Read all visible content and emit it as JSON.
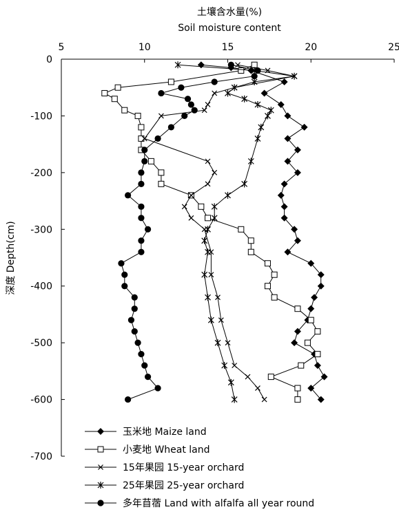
{
  "chart_data": {
    "type": "line",
    "title_cn": "土壤含水量(%)",
    "title_en": "Soil moisture content",
    "ylabel": "深度 Depth(cm)",
    "x_axis_position": "top",
    "xlim": [
      5,
      25
    ],
    "ylim": [
      -700,
      0
    ],
    "xticks": [
      5,
      10,
      15,
      20,
      25
    ],
    "yticks": [
      0,
      -100,
      -200,
      -300,
      -400,
      -500,
      -600,
      -700
    ],
    "legend_position": "bottom-left",
    "series": [
      {
        "name": "玉米地 Maize land",
        "marker": "diamond",
        "color": "#000000",
        "points": [
          {
            "x": 13.4,
            "y": -10
          },
          {
            "x": 15.2,
            "y": -15
          },
          {
            "x": 16.4,
            "y": -20
          },
          {
            "x": 18.4,
            "y": -40
          },
          {
            "x": 17.2,
            "y": -60
          },
          {
            "x": 18.2,
            "y": -80
          },
          {
            "x": 18.6,
            "y": -100
          },
          {
            "x": 19.6,
            "y": -120
          },
          {
            "x": 18.6,
            "y": -140
          },
          {
            "x": 19.2,
            "y": -160
          },
          {
            "x": 18.6,
            "y": -180
          },
          {
            "x": 19.2,
            "y": -200
          },
          {
            "x": 18.4,
            "y": -220
          },
          {
            "x": 18.2,
            "y": -240
          },
          {
            "x": 18.4,
            "y": -260
          },
          {
            "x": 18.4,
            "y": -280
          },
          {
            "x": 19.0,
            "y": -300
          },
          {
            "x": 19.2,
            "y": -320
          },
          {
            "x": 18.6,
            "y": -340
          },
          {
            "x": 20.0,
            "y": -360
          },
          {
            "x": 20.6,
            "y": -380
          },
          {
            "x": 20.6,
            "y": -400
          },
          {
            "x": 20.2,
            "y": -420
          },
          {
            "x": 20.0,
            "y": -440
          },
          {
            "x": 19.8,
            "y": -460
          },
          {
            "x": 19.2,
            "y": -480
          },
          {
            "x": 19.0,
            "y": -500
          },
          {
            "x": 20.2,
            "y": -520
          },
          {
            "x": 20.4,
            "y": -540
          },
          {
            "x": 20.8,
            "y": -560
          },
          {
            "x": 20.0,
            "y": -580
          },
          {
            "x": 20.6,
            "y": -600
          }
        ]
      },
      {
        "name": "小麦地 Wheat land",
        "marker": "open-square",
        "color": "#000000",
        "points": [
          {
            "x": 16.6,
            "y": -10
          },
          {
            "x": 15.8,
            "y": -20
          },
          {
            "x": 11.6,
            "y": -40
          },
          {
            "x": 8.4,
            "y": -50
          },
          {
            "x": 7.6,
            "y": -60
          },
          {
            "x": 8.2,
            "y": -70
          },
          {
            "x": 8.8,
            "y": -90
          },
          {
            "x": 9.6,
            "y": -100
          },
          {
            "x": 9.8,
            "y": -120
          },
          {
            "x": 9.8,
            "y": -140
          },
          {
            "x": 9.8,
            "y": -160
          },
          {
            "x": 10.4,
            "y": -180
          },
          {
            "x": 11.0,
            "y": -200
          },
          {
            "x": 11.0,
            "y": -220
          },
          {
            "x": 12.8,
            "y": -240
          },
          {
            "x": 13.4,
            "y": -260
          },
          {
            "x": 13.8,
            "y": -280
          },
          {
            "x": 15.8,
            "y": -300
          },
          {
            "x": 16.4,
            "y": -320
          },
          {
            "x": 16.4,
            "y": -340
          },
          {
            "x": 17.4,
            "y": -360
          },
          {
            "x": 17.8,
            "y": -380
          },
          {
            "x": 17.4,
            "y": -400
          },
          {
            "x": 17.8,
            "y": -420
          },
          {
            "x": 19.2,
            "y": -440
          },
          {
            "x": 20.0,
            "y": -460
          },
          {
            "x": 20.4,
            "y": -480
          },
          {
            "x": 19.8,
            "y": -500
          },
          {
            "x": 20.4,
            "y": -520
          },
          {
            "x": 19.4,
            "y": -540
          },
          {
            "x": 17.6,
            "y": -560
          },
          {
            "x": 19.2,
            "y": -580
          },
          {
            "x": 19.2,
            "y": -600
          }
        ]
      },
      {
        "name": "15年果园 15-year orchard",
        "marker": "x",
        "color": "#000000",
        "points": [
          {
            "x": 15.6,
            "y": -10
          },
          {
            "x": 17.4,
            "y": -20
          },
          {
            "x": 19.0,
            "y": -30
          },
          {
            "x": 15.4,
            "y": -50
          },
          {
            "x": 14.2,
            "y": -60
          },
          {
            "x": 13.8,
            "y": -80
          },
          {
            "x": 13.6,
            "y": -90
          },
          {
            "x": 11.0,
            "y": -100
          },
          {
            "x": 10.0,
            "y": -140
          },
          {
            "x": 13.8,
            "y": -180
          },
          {
            "x": 14.2,
            "y": -200
          },
          {
            "x": 13.8,
            "y": -220
          },
          {
            "x": 12.8,
            "y": -240
          },
          {
            "x": 12.4,
            "y": -260
          },
          {
            "x": 12.8,
            "y": -280
          },
          {
            "x": 13.6,
            "y": -300
          },
          {
            "x": 14.0,
            "y": -340
          },
          {
            "x": 14.0,
            "y": -380
          },
          {
            "x": 14.4,
            "y": -420
          },
          {
            "x": 14.6,
            "y": -460
          },
          {
            "x": 15.0,
            "y": -500
          },
          {
            "x": 15.4,
            "y": -540
          },
          {
            "x": 16.2,
            "y": -560
          },
          {
            "x": 16.8,
            "y": -580
          },
          {
            "x": 17.2,
            "y": -600
          }
        ]
      },
      {
        "name": "25年果园 25-year orchard",
        "marker": "asterisk",
        "color": "#000000",
        "points": [
          {
            "x": 12.0,
            "y": -10
          },
          {
            "x": 16.6,
            "y": -20
          },
          {
            "x": 19.0,
            "y": -30
          },
          {
            "x": 16.6,
            "y": -40
          },
          {
            "x": 15.4,
            "y": -50
          },
          {
            "x": 15.0,
            "y": -60
          },
          {
            "x": 16.0,
            "y": -70
          },
          {
            "x": 16.8,
            "y": -80
          },
          {
            "x": 17.6,
            "y": -90
          },
          {
            "x": 17.4,
            "y": -100
          },
          {
            "x": 17.0,
            "y": -120
          },
          {
            "x": 16.8,
            "y": -140
          },
          {
            "x": 16.4,
            "y": -180
          },
          {
            "x": 16.0,
            "y": -220
          },
          {
            "x": 15.0,
            "y": -240
          },
          {
            "x": 14.2,
            "y": -260
          },
          {
            "x": 14.2,
            "y": -280
          },
          {
            "x": 13.8,
            "y": -300
          },
          {
            "x": 13.6,
            "y": -320
          },
          {
            "x": 13.8,
            "y": -340
          },
          {
            "x": 13.6,
            "y": -380
          },
          {
            "x": 13.8,
            "y": -420
          },
          {
            "x": 14.0,
            "y": -460
          },
          {
            "x": 14.4,
            "y": -500
          },
          {
            "x": 14.8,
            "y": -540
          },
          {
            "x": 15.2,
            "y": -570
          },
          {
            "x": 15.4,
            "y": -600
          }
        ]
      },
      {
        "name": "多年苜蓿 Land with alfalfa all year round",
        "marker": "filled-circle",
        "color": "#000000",
        "points": [
          {
            "x": 15.2,
            "y": -10
          },
          {
            "x": 16.8,
            "y": -20
          },
          {
            "x": 16.6,
            "y": -30
          },
          {
            "x": 14.2,
            "y": -40
          },
          {
            "x": 12.2,
            "y": -50
          },
          {
            "x": 11.0,
            "y": -60
          },
          {
            "x": 12.6,
            "y": -70
          },
          {
            "x": 12.8,
            "y": -80
          },
          {
            "x": 13.0,
            "y": -90
          },
          {
            "x": 12.4,
            "y": -100
          },
          {
            "x": 11.6,
            "y": -120
          },
          {
            "x": 10.8,
            "y": -140
          },
          {
            "x": 10.0,
            "y": -160
          },
          {
            "x": 10.0,
            "y": -180
          },
          {
            "x": 9.8,
            "y": -200
          },
          {
            "x": 9.8,
            "y": -220
          },
          {
            "x": 9.0,
            "y": -240
          },
          {
            "x": 9.8,
            "y": -260
          },
          {
            "x": 9.8,
            "y": -280
          },
          {
            "x": 10.2,
            "y": -300
          },
          {
            "x": 9.8,
            "y": -320
          },
          {
            "x": 9.8,
            "y": -340
          },
          {
            "x": 8.6,
            "y": -360
          },
          {
            "x": 8.8,
            "y": -380
          },
          {
            "x": 8.8,
            "y": -400
          },
          {
            "x": 9.4,
            "y": -420
          },
          {
            "x": 9.4,
            "y": -440
          },
          {
            "x": 9.2,
            "y": -460
          },
          {
            "x": 9.4,
            "y": -480
          },
          {
            "x": 9.6,
            "y": -500
          },
          {
            "x": 9.8,
            "y": -520
          },
          {
            "x": 10.0,
            "y": -540
          },
          {
            "x": 10.2,
            "y": -560
          },
          {
            "x": 10.8,
            "y": -580
          },
          {
            "x": 9.0,
            "y": -600
          }
        ]
      }
    ]
  }
}
